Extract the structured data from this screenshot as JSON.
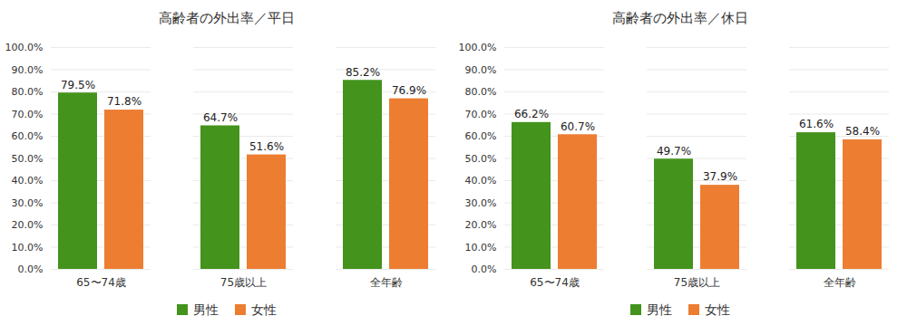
{
  "chart_data": [
    {
      "type": "bar",
      "title": "高齢者の外出率／平日",
      "categories": [
        "65〜74歳",
        "75歳以上",
        "全年齢"
      ],
      "series": [
        {
          "name": "男性",
          "color": "#43931c",
          "values": [
            79.5,
            64.7,
            85.2
          ],
          "value_labels": [
            "79.5%",
            "64.7%",
            "85.2%"
          ]
        },
        {
          "name": "女性",
          "color": "#ed7d31",
          "values": [
            71.8,
            51.6,
            76.9
          ],
          "value_labels": [
            "71.8%",
            "51.6%",
            "76.9%"
          ]
        }
      ],
      "ylim": [
        0,
        100
      ],
      "yticks": [
        {
          "value": 0,
          "label": "0.0%"
        },
        {
          "value": 10,
          "label": "10.0%"
        },
        {
          "value": 20,
          "label": "20.0%"
        },
        {
          "value": 30,
          "label": "30.0%"
        },
        {
          "value": 40,
          "label": "40.0%"
        },
        {
          "value": 50,
          "label": "50.0%"
        },
        {
          "value": 60,
          "label": "60.0%"
        },
        {
          "value": 70,
          "label": "70.0%"
        },
        {
          "value": 80,
          "label": "80.0%"
        },
        {
          "value": 90,
          "label": "90.0%"
        },
        {
          "value": 100,
          "label": "100.0%"
        }
      ],
      "grid": true,
      "legend": "bottom",
      "data_labels": true
    },
    {
      "type": "bar",
      "title": "高齢者の外出率／休日",
      "categories": [
        "65〜74歳",
        "75歳以上",
        "全年齢"
      ],
      "series": [
        {
          "name": "男性",
          "color": "#43931c",
          "values": [
            66.2,
            49.7,
            61.6
          ],
          "value_labels": [
            "66.2%",
            "49.7%",
            "61.6%"
          ]
        },
        {
          "name": "女性",
          "color": "#ed7d31",
          "values": [
            60.7,
            37.9,
            58.4
          ],
          "value_labels": [
            "60.7%",
            "37.9%",
            "58.4%"
          ]
        }
      ],
      "ylim": [
        0,
        100
      ],
      "yticks": [
        {
          "value": 0,
          "label": "0.0%"
        },
        {
          "value": 10,
          "label": "10.0%"
        },
        {
          "value": 20,
          "label": "20.0%"
        },
        {
          "value": 30,
          "label": "30.0%"
        },
        {
          "value": 40,
          "label": "40.0%"
        },
        {
          "value": 50,
          "label": "50.0%"
        },
        {
          "value": 60,
          "label": "60.0%"
        },
        {
          "value": 70,
          "label": "70.0%"
        },
        {
          "value": 80,
          "label": "80.0%"
        },
        {
          "value": 90,
          "label": "90.0%"
        },
        {
          "value": 100,
          "label": "100.0%"
        }
      ],
      "grid": true,
      "legend": "bottom",
      "data_labels": true
    }
  ]
}
